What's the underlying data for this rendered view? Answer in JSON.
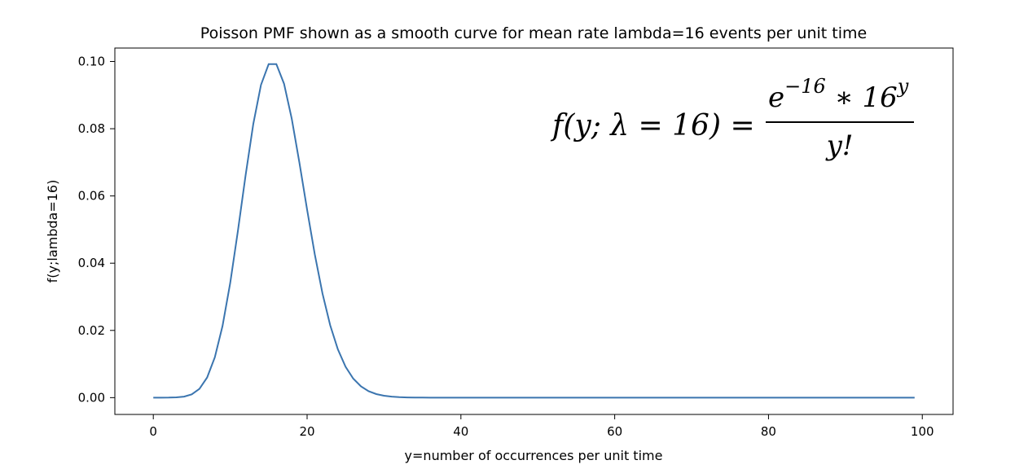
{
  "chart_data": {
    "type": "line",
    "title": "Poisson PMF shown as a smooth curve for mean rate lambda=16 events per unit time",
    "xlabel": "y=number of occurrences per unit time",
    "ylabel": "f(y;lambda=16)",
    "lambda": 16,
    "x_range": [
      0,
      99
    ],
    "xlim": [
      -5.0,
      104.0
    ],
    "ylim": [
      -0.005,
      0.104
    ],
    "xticks": [
      0,
      20,
      40,
      60,
      80,
      100
    ],
    "xtick_labels": [
      "0",
      "20",
      "40",
      "60",
      "80",
      "100"
    ],
    "yticks": [
      0.0,
      0.02,
      0.04,
      0.06,
      0.08,
      0.1
    ],
    "ytick_labels": [
      "0.00",
      "0.02",
      "0.04",
      "0.06",
      "0.08",
      "0.10"
    ],
    "series_color": "#3b75af",
    "grid": false,
    "legend": "none",
    "annotation": {
      "lhs": "f(y; λ = 16) =",
      "numerator_base": "e",
      "numerator_exp": "−16",
      "numerator_mid": " ∗ 16",
      "numerator_exp2": "y",
      "denominator": "y!"
    }
  }
}
